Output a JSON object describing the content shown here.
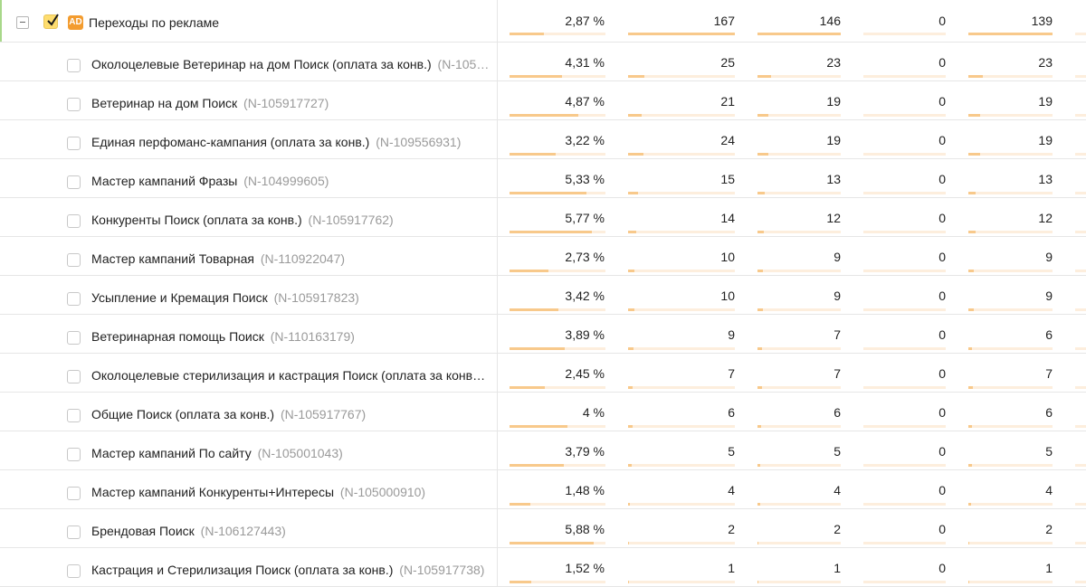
{
  "colors": {
    "bar_fill": "#f8c98b",
    "bar_track": "#fdeedd",
    "accent": "#f39c2f",
    "checkbox_checked": "#fedd6f"
  },
  "parent": {
    "badge": "AD",
    "label": "Переходы по рекламе",
    "checked": true,
    "values": [
      "2,87 %",
      "167",
      "146",
      "0",
      "139"
    ],
    "bars": [
      0.36,
      1.0,
      1.0,
      0,
      1.0
    ]
  },
  "rows": [
    {
      "name": "Околоцелевые Ветеринар на дом Поиск (оплата за конв.)",
      "id": "(N-105…",
      "values": [
        "4,31 %",
        "25",
        "23",
        "0",
        "23"
      ],
      "bars": [
        0.55,
        0.15,
        0.16,
        0,
        0.17
      ]
    },
    {
      "name": "Ветеринар на дом Поиск",
      "id": "(N-105917727)",
      "values": [
        "4,87 %",
        "21",
        "19",
        "0",
        "19"
      ],
      "bars": [
        0.72,
        0.13,
        0.13,
        0,
        0.14
      ]
    },
    {
      "name": "Единая перфоманс-кампания (оплата за конв.)",
      "id": "(N-109556931)",
      "values": [
        "3,22 %",
        "24",
        "19",
        "0",
        "19"
      ],
      "bars": [
        0.48,
        0.14,
        0.13,
        0,
        0.14
      ]
    },
    {
      "name": "Мастер кампаний Фразы",
      "id": "(N-104999605)",
      "values": [
        "5,33 %",
        "15",
        "13",
        "0",
        "13"
      ],
      "bars": [
        0.8,
        0.09,
        0.09,
        0,
        0.09
      ]
    },
    {
      "name": "Конкуренты Поиск (оплата за конв.)",
      "id": "(N-105917762)",
      "values": [
        "5,77 %",
        "14",
        "12",
        "0",
        "12"
      ],
      "bars": [
        0.86,
        0.08,
        0.08,
        0,
        0.09
      ]
    },
    {
      "name": "Мастер кампаний Товарная",
      "id": "(N-110922047)",
      "values": [
        "2,73 %",
        "10",
        "9",
        "0",
        "9"
      ],
      "bars": [
        0.41,
        0.06,
        0.06,
        0,
        0.06
      ]
    },
    {
      "name": "Усыпление и Кремация Поиск",
      "id": "(N-105917823)",
      "values": [
        "3,42 %",
        "10",
        "9",
        "0",
        "9"
      ],
      "bars": [
        0.51,
        0.06,
        0.06,
        0,
        0.06
      ]
    },
    {
      "name": "Ветеринарная помощь Поиск",
      "id": "(N-110163179)",
      "values": [
        "3,89 %",
        "9",
        "7",
        "0",
        "6"
      ],
      "bars": [
        0.58,
        0.05,
        0.05,
        0,
        0.04
      ]
    },
    {
      "name": "Околоцелевые стерилизация и кастрация Поиск (оплата за конв…",
      "id": "",
      "values": [
        "2,45 %",
        "7",
        "7",
        "0",
        "7"
      ],
      "bars": [
        0.37,
        0.04,
        0.05,
        0,
        0.05
      ]
    },
    {
      "name": "Общие Поиск (оплата за конв.)",
      "id": "(N-105917767)",
      "values": [
        "4 %",
        "6",
        "6",
        "0",
        "6"
      ],
      "bars": [
        0.6,
        0.04,
        0.04,
        0,
        0.04
      ]
    },
    {
      "name": "Мастер кампаний По сайту",
      "id": "(N-105001043)",
      "values": [
        "3,79 %",
        "5",
        "5",
        "0",
        "5"
      ],
      "bars": [
        0.57,
        0.03,
        0.03,
        0,
        0.04
      ]
    },
    {
      "name": "Мастер кампаний Конкуренты+Интересы",
      "id": "(N-105000910)",
      "values": [
        "1,48 %",
        "4",
        "4",
        "0",
        "4"
      ],
      "bars": [
        0.22,
        0.02,
        0.03,
        0,
        0.03
      ]
    },
    {
      "name": "Брендовая Поиск",
      "id": "(N-106127443)",
      "values": [
        "5,88 %",
        "2",
        "2",
        "0",
        "2"
      ],
      "bars": [
        0.88,
        0.01,
        0.01,
        0,
        0.01
      ]
    },
    {
      "name": "Кастрация и Стерилизация Поиск (оплата за конв.)",
      "id": "(N-105917738)",
      "values": [
        "1,52 %",
        "1",
        "1",
        "0",
        "1"
      ],
      "bars": [
        0.23,
        0.01,
        0.01,
        0,
        0.01
      ]
    }
  ]
}
